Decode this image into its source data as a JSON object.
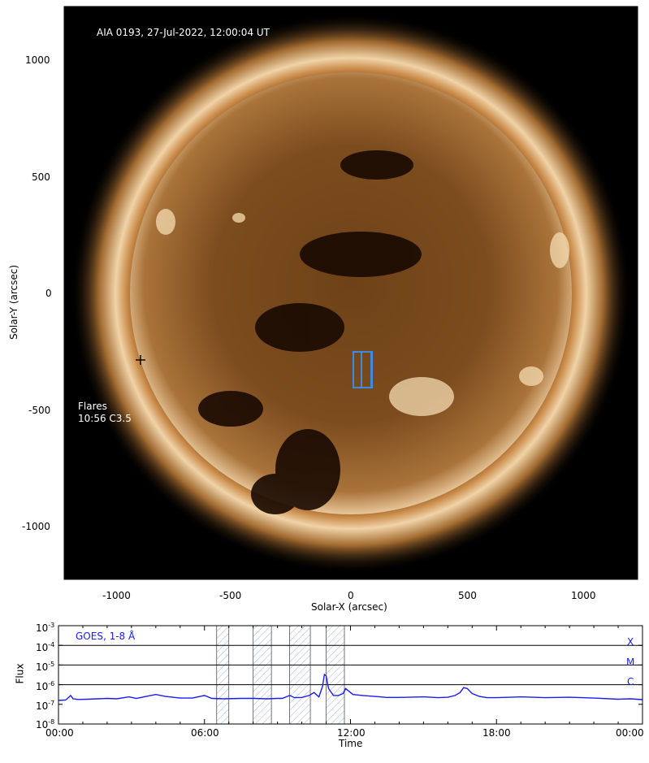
{
  "sun_image": {
    "title": "AIA 0193, 27-Jul-2022, 12:00:04 UT",
    "flares_heading": "Flares",
    "flares": [
      "10:56 C3.5"
    ],
    "xlabel": "Solar-X (arcsec)",
    "ylabel": "Solar-Y (arcsec)",
    "xticks": [
      "-1000",
      "-500",
      "0",
      "500",
      "1000"
    ],
    "yticks": [
      "1000",
      "500",
      "0",
      "-500",
      "-1000"
    ],
    "xlim": [
      -1230,
      1230
    ],
    "ylim": [
      -1230,
      1230
    ],
    "colors": {
      "background": "#000000",
      "disk": "#7a4a1c",
      "limb": "#f3dcb8",
      "roi_box": "#3b8be0"
    }
  },
  "goes": {
    "label": "GOES, 1-8 Å",
    "xlabel": "Time",
    "ylabel": "Flux",
    "xticks": [
      "00:00",
      "06:00",
      "12:00",
      "18:00",
      "00:00"
    ],
    "yticks_exp": [
      "-3",
      "-4",
      "-5",
      "-6",
      "-7",
      "-8"
    ],
    "ytick_base": "10",
    "class_labels": [
      "X",
      "M",
      "C"
    ],
    "color": "#1a1aff",
    "observation_windows_hours": [
      [
        6.5,
        7.0
      ],
      [
        8.0,
        8.75
      ],
      [
        9.5,
        10.35
      ],
      [
        11.0,
        11.75
      ]
    ],
    "flux_log10": [
      [
        0.0,
        -6.8
      ],
      [
        0.3,
        -6.78
      ],
      [
        0.5,
        -6.55
      ],
      [
        0.6,
        -6.72
      ],
      [
        0.8,
        -6.75
      ],
      [
        1.2,
        -6.74
      ],
      [
        1.6,
        -6.72
      ],
      [
        2.0,
        -6.7
      ],
      [
        2.4,
        -6.72
      ],
      [
        2.9,
        -6.62
      ],
      [
        3.2,
        -6.7
      ],
      [
        3.6,
        -6.6
      ],
      [
        4.0,
        -6.5
      ],
      [
        4.4,
        -6.6
      ],
      [
        5.0,
        -6.68
      ],
      [
        5.5,
        -6.68
      ],
      [
        6.0,
        -6.55
      ],
      [
        6.3,
        -6.7
      ],
      [
        6.8,
        -6.72
      ],
      [
        7.5,
        -6.7
      ],
      [
        8.0,
        -6.7
      ],
      [
        8.6,
        -6.72
      ],
      [
        9.0,
        -6.7
      ],
      [
        9.2,
        -6.7
      ],
      [
        9.5,
        -6.55
      ],
      [
        9.7,
        -6.66
      ],
      [
        10.0,
        -6.65
      ],
      [
        10.3,
        -6.55
      ],
      [
        10.5,
        -6.4
      ],
      [
        10.7,
        -6.62
      ],
      [
        10.85,
        -6.1
      ],
      [
        10.93,
        -5.48
      ],
      [
        11.0,
        -5.55
      ],
      [
        11.1,
        -6.2
      ],
      [
        11.3,
        -6.55
      ],
      [
        11.5,
        -6.55
      ],
      [
        11.7,
        -6.45
      ],
      [
        11.8,
        -6.2
      ],
      [
        11.95,
        -6.35
      ],
      [
        12.1,
        -6.5
      ],
      [
        12.5,
        -6.55
      ],
      [
        13.0,
        -6.6
      ],
      [
        13.5,
        -6.65
      ],
      [
        14.0,
        -6.65
      ],
      [
        15.0,
        -6.62
      ],
      [
        15.6,
        -6.66
      ],
      [
        16.0,
        -6.64
      ],
      [
        16.3,
        -6.55
      ],
      [
        16.5,
        -6.4
      ],
      [
        16.65,
        -6.15
      ],
      [
        16.8,
        -6.2
      ],
      [
        17.0,
        -6.45
      ],
      [
        17.3,
        -6.6
      ],
      [
        17.6,
        -6.66
      ],
      [
        18.0,
        -6.66
      ],
      [
        19.0,
        -6.62
      ],
      [
        20.0,
        -6.66
      ],
      [
        21.0,
        -6.64
      ],
      [
        22.0,
        -6.68
      ],
      [
        23.0,
        -6.74
      ],
      [
        23.5,
        -6.72
      ],
      [
        24.0,
        -6.76
      ]
    ]
  }
}
